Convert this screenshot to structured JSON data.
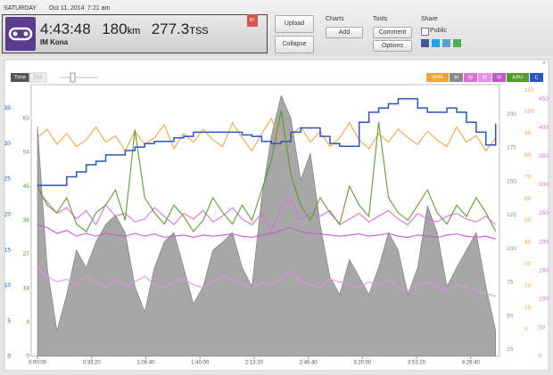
{
  "header": {
    "day": "SATURDAY",
    "date": "Oct 11, 2014",
    "time": "7:21 am",
    "duration": "4:43:48",
    "distance": "180",
    "distance_unit": "km",
    "tss": "277.3",
    "tss_unit": "TSS",
    "name": "IM Kona",
    "badge": "BT"
  },
  "buttons": {
    "upload": "Upload",
    "collapse": "Collapse"
  },
  "charts": {
    "label": "Charts",
    "add": "Add"
  },
  "tools": {
    "label": "Tools",
    "comment": "Comment",
    "options": "Options"
  },
  "share": {
    "label": "Share",
    "public": "Public"
  },
  "toolbar": {
    "time": "Time",
    "dist": "Dist"
  },
  "chart_data": {
    "type": "line",
    "x": [
      0,
      360,
      720,
      1080,
      1440,
      1800,
      2160,
      2520,
      2880,
      3240,
      3600,
      3960,
      4320,
      4680,
      5040,
      5400,
      5760,
      6120,
      6480,
      6840,
      7200,
      7560,
      7920,
      8280,
      8640,
      9000,
      9360,
      9720,
      10080,
      10440,
      10800,
      11160,
      11520,
      11880,
      12240,
      12600,
      12960,
      13320,
      13680,
      14040,
      14400,
      14760,
      15120,
      15480,
      15840,
      16200,
      16560,
      16920
    ],
    "xlim": [
      0,
      17028
    ],
    "xticks": [
      {
        "value": 0,
        "label": "0:00:00"
      },
      {
        "value": 2000,
        "label": "0:33:20"
      },
      {
        "value": 4000,
        "label": "1:06:40"
      },
      {
        "value": 6000,
        "label": "1:40:00"
      },
      {
        "value": 8000,
        "label": "2:13:20"
      },
      {
        "value": 10000,
        "label": "2:46:40"
      },
      {
        "value": 12000,
        "label": "3:20:00"
      },
      {
        "value": 14000,
        "label": "3:53:20"
      },
      {
        "value": 16000,
        "label": "4:26:40"
      }
    ],
    "series": [
      {
        "name": "RPM",
        "type": "line",
        "color": "#f0a43a",
        "ylim": [
          -12.5,
          112.5
        ],
        "yticks": [
          0,
          10,
          20,
          30,
          40,
          50,
          60,
          70,
          80,
          90,
          100,
          110
        ],
        "values": [
          88,
          92,
          85,
          90,
          84,
          87,
          93,
          86,
          89,
          82,
          91,
          85,
          88,
          94,
          83,
          90,
          86,
          92,
          87,
          84,
          95,
          88,
          82,
          90,
          97,
          85,
          89,
          93,
          86,
          91,
          84,
          88,
          95,
          87,
          83,
          90,
          86,
          92,
          88,
          85,
          91,
          87,
          84,
          93,
          86,
          89,
          82,
          88
        ]
      },
      {
        "name": "M",
        "type": "area",
        "color": "#8a8a8a",
        "ylim": [
          20,
          222
        ],
        "yticks": [
          25,
          50,
          75,
          100,
          125,
          150,
          175,
          200
        ],
        "values": [
          191,
          86,
          39,
          66,
          99,
          86,
          105,
          118,
          125,
          112,
          72,
          53,
          86,
          105,
          112,
          86,
          59,
          72,
          99,
          105,
          112,
          86,
          72,
          138,
          184,
          214,
          197,
          151,
          171,
          118,
          79,
          66,
          92,
          79,
          66,
          86,
          112,
          99,
          66,
          86,
          132,
          112,
          72,
          86,
          99,
          112,
          72,
          39
        ]
      },
      {
        "name": "W",
        "type": "line",
        "color": "#d86fd8",
        "ylim": [
          0,
          475
        ],
        "yticks": [
          0,
          50,
          100,
          150,
          200,
          250,
          300,
          350,
          400,
          450
        ],
        "values": [
          290,
          270,
          250,
          260,
          240,
          255,
          230,
          265,
          245,
          250,
          235,
          240,
          260,
          245,
          230,
          250,
          240,
          255,
          235,
          245,
          260,
          240,
          230,
          250,
          220,
          260,
          275,
          240,
          250,
          245,
          255,
          230,
          240,
          250,
          235,
          245,
          255,
          240,
          230,
          250,
          240,
          235,
          245,
          250,
          240,
          235,
          245,
          230
        ]
      },
      {
        "name": "W",
        "type": "line",
        "color": "#e98fe9",
        "ylim": [
          0,
          475
        ],
        "values": [
          155,
          140,
          130,
          135,
          125,
          140,
          130,
          120,
          135,
          125,
          130,
          140,
          125,
          120,
          130,
          135,
          125,
          120,
          130,
          140,
          135,
          125,
          120,
          130,
          125,
          135,
          150,
          130,
          125,
          120,
          135,
          130,
          125,
          120,
          130,
          125,
          135,
          120,
          115,
          125,
          130,
          120,
          115,
          125,
          120,
          115,
          110,
          105
        ]
      },
      {
        "name": "W",
        "type": "line",
        "color": "#c455d0",
        "ylim": [
          0,
          475
        ],
        "values": [
          230,
          225,
          215,
          220,
          210,
          215,
          210,
          215,
          212,
          210,
          215,
          210,
          214,
          208,
          210,
          212,
          208,
          212,
          210,
          212,
          214,
          210,
          208,
          212,
          215,
          220,
          225,
          218,
          215,
          214,
          212,
          210,
          212,
          214,
          210,
          212,
          215,
          210,
          208,
          212,
          210,
          208,
          212,
          214,
          210,
          208,
          210,
          205
        ]
      },
      {
        "name": "KPH",
        "type": "line",
        "color": "#5a9a2a",
        "ylim": [
          0,
          71.9
        ],
        "yticks": [
          0,
          9,
          18,
          27,
          36,
          45,
          54,
          63
        ],
        "values": [
          45,
          40,
          38,
          42,
          35,
          33,
          38,
          40,
          44,
          36,
          60,
          42,
          38,
          35,
          40,
          37,
          33,
          36,
          42,
          38,
          35,
          40,
          36,
          44,
          52,
          65,
          48,
          40,
          36,
          42,
          38,
          35,
          45,
          40,
          37,
          62,
          42,
          38,
          36,
          40,
          44,
          38,
          35,
          40,
          37,
          42,
          38,
          33
        ]
      },
      {
        "name": "C",
        "type": "step",
        "color": "#2a55c8",
        "ylim": [
          0,
          38.3
        ],
        "yticks": [
          0,
          5,
          10,
          15,
          20,
          25,
          30,
          35
        ],
        "values": [
          24.1,
          24.1,
          24.1,
          25.3,
          26,
          27,
          27.5,
          28.4,
          28.4,
          29,
          29.5,
          30,
          30.3,
          30.3,
          30.8,
          31,
          31.6,
          31.6,
          31.6,
          31.6,
          31.6,
          31.2,
          31,
          30.3,
          30,
          30.3,
          31.6,
          32.2,
          32.2,
          31,
          30,
          29.6,
          29.6,
          33,
          34.4,
          35,
          35.6,
          36.3,
          36.3,
          35,
          34.4,
          34.4,
          35,
          34.4,
          33,
          31.6,
          29.8,
          32.8
        ]
      }
    ]
  }
}
